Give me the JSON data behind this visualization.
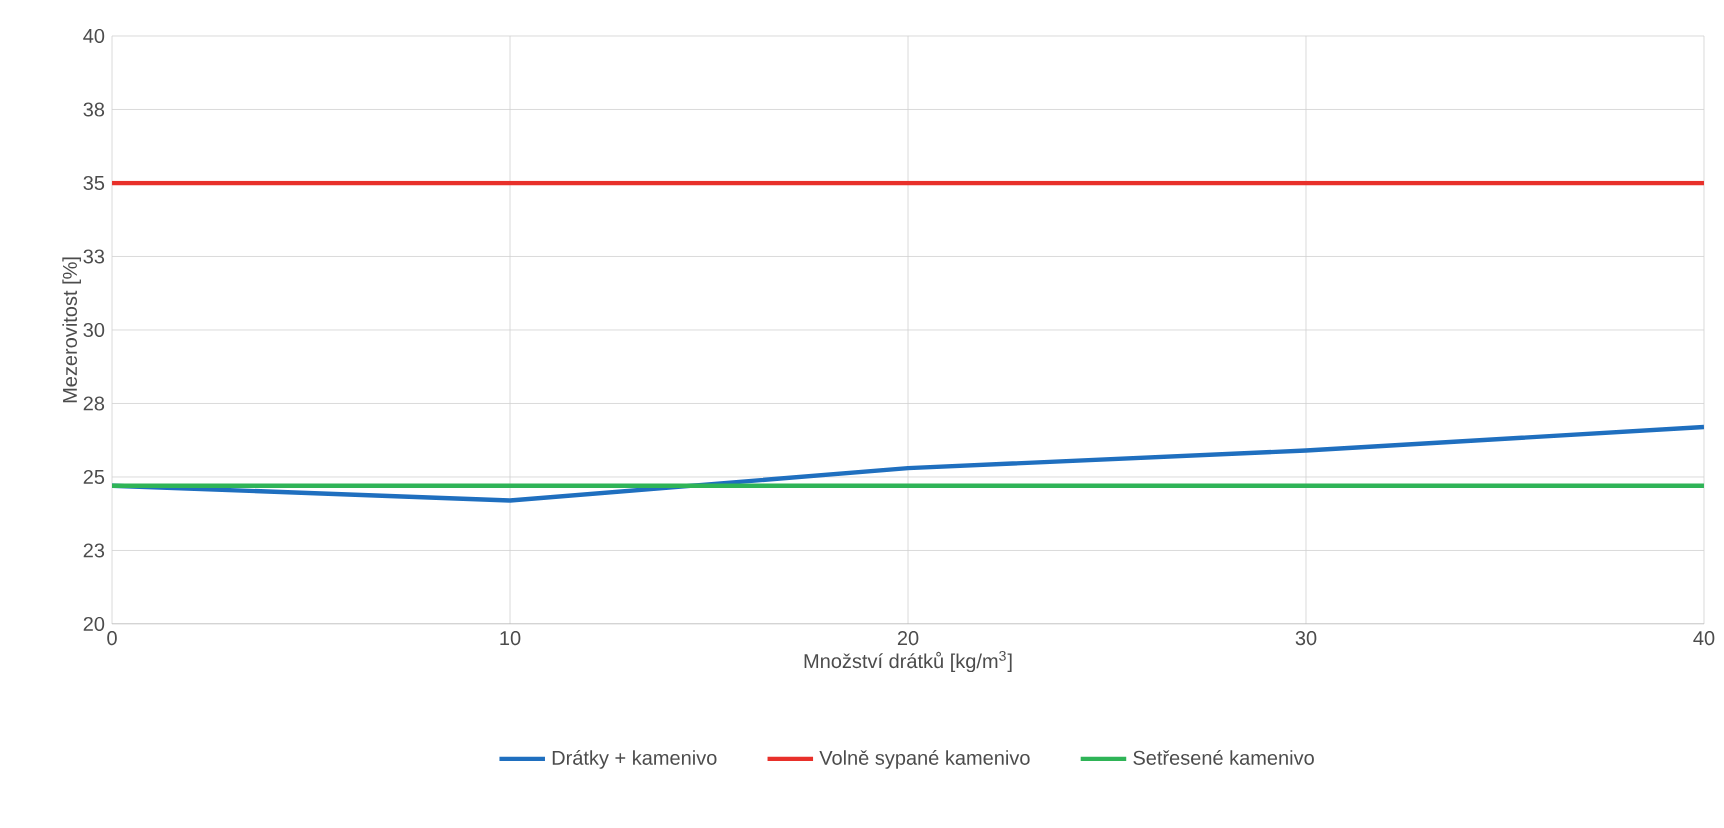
{
  "chart_data": {
    "type": "line",
    "xlabel": "Množství drátků [kg/m$^{3}$]",
    "ylabel": "Mezerovitost [%]",
    "x": [
      0,
      10,
      20,
      30,
      40
    ],
    "series": [
      {
        "name": "Drátky + kamenivo",
        "color": "#1f6fbf",
        "values": [
          24.7,
          24.2,
          25.3,
          25.9,
          26.7
        ]
      },
      {
        "name": "Volně sypané kamenivo",
        "color": "#e8302a",
        "values": [
          35.0,
          35.0,
          35.0,
          35.0,
          35.0
        ]
      },
      {
        "name": "Setřesené kamenivo",
        "color": "#2fb457",
        "values": [
          24.7,
          24.7,
          24.7,
          24.7,
          24.7
        ]
      }
    ],
    "xlim": [
      0,
      40
    ],
    "xticks": [
      0,
      10,
      20,
      30,
      40
    ],
    "ylim": [
      20,
      40
    ],
    "yticks": [
      20,
      {
        "value": 22.5,
        "label": "23"
      },
      25,
      {
        "value": 27.5,
        "label": "28"
      },
      30,
      {
        "value": 32.5,
        "label": "33"
      },
      35,
      {
        "value": 37.5,
        "label": "38"
      },
      40
    ],
    "grid": true,
    "legend": "bottom",
    "marker": "none",
    "line_style": "solid"
  }
}
